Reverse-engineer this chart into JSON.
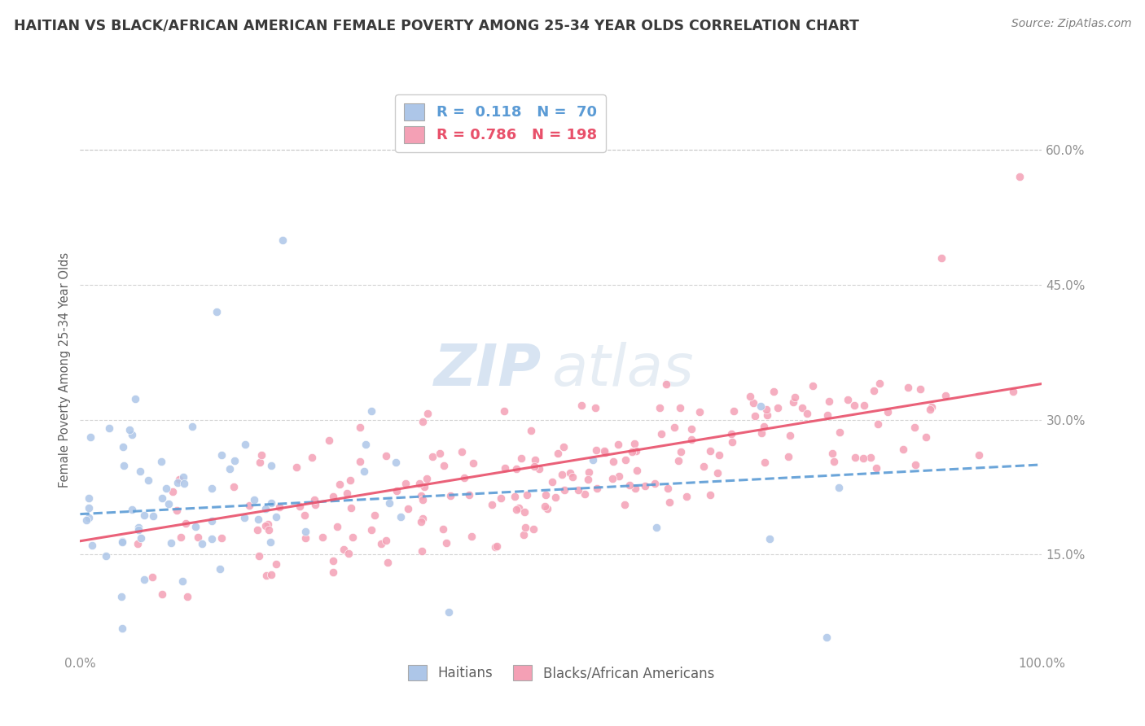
{
  "title": "HAITIAN VS BLACK/AFRICAN AMERICAN FEMALE POVERTY AMONG 25-34 YEAR OLDS CORRELATION CHART",
  "source": "Source: ZipAtlas.com",
  "ylabel": "Female Poverty Among 25-34 Year Olds",
  "x_min": 0.0,
  "x_max": 1.0,
  "y_min": 0.04,
  "y_max": 0.67,
  "x_ticks": [
    0.0,
    1.0
  ],
  "x_tick_labels": [
    "0.0%",
    "100.0%"
  ],
  "y_ticks": [
    0.15,
    0.3,
    0.45,
    0.6
  ],
  "y_tick_labels": [
    "15.0%",
    "30.0%",
    "45.0%",
    "60.0%"
  ],
  "legend_r1": "R =  0.118   N =  70",
  "legend_r2": "R = 0.786   N = 198",
  "color_haitian": "#adc6e8",
  "color_black": "#f4a0b5",
  "color_haitian_line": "#5b9bd5",
  "color_black_line": "#e8506a",
  "watermark_zip": "ZIP",
  "watermark_atlas": "atlas",
  "background_color": "#ffffff",
  "grid_color": "#c8c8c8",
  "legend_label1": "Haitians",
  "legend_label2": "Blacks/African Americans",
  "title_color": "#3a3a3a",
  "source_color": "#808080",
  "axis_label_color": "#606060",
  "tick_label_color": "#909090"
}
